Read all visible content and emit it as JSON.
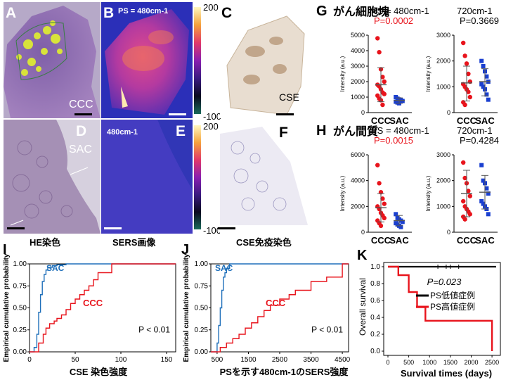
{
  "micrographs": {
    "letters": [
      "A",
      "B",
      "C",
      "D",
      "E",
      "F"
    ],
    "label_ccc": "CCC",
    "label_sac": "SAC",
    "label_cse": "CSE",
    "label_b": "PS = 480cm-1",
    "label_e": "480cm-1",
    "colorbar_max": "200",
    "colorbar_min": "-100",
    "caption_he": "HE染色",
    "caption_sers": "SERS画像",
    "caption_cse": "CSE免疫染色"
  },
  "scatter": {
    "G": {
      "letter": "G",
      "title": "がん細胞塊",
      "left": {
        "title": "PS = 480cm-1",
        "pvalue": "P=0.0002",
        "pvalue_color": "#e8141c"
      },
      "right": {
        "title": "720cm-1",
        "pvalue": "P=0.3669",
        "pvalue_color": "#000000"
      }
    },
    "H": {
      "letter": "H",
      "title": "がん間質",
      "left": {
        "title": "PS = 480cm-1",
        "pvalue": "P=0.0015",
        "pvalue_color": "#e8141c"
      },
      "right": {
        "title": "720cm-1",
        "pvalue": "P=0.4284",
        "pvalue_color": "#000000"
      }
    },
    "ylabel": "Intensity (a.u.)",
    "yticks": [
      "0",
      "1000",
      "2000",
      "3000",
      "4000",
      "5000"
    ],
    "yticks_h": [
      "0",
      "2000",
      "4000",
      "6000"
    ],
    "cat_labels": [
      "CCC",
      "SAC"
    ]
  },
  "ecdf": {
    "I": {
      "letter": "I",
      "ylabel": "Empirical cumulative probability",
      "xlabel": "CSE 染色強度",
      "xticks": [
        "0",
        "50",
        "100",
        "150"
      ],
      "yticks": [
        "0.00",
        "0.25",
        "0.50",
        "0.75",
        "1.00"
      ],
      "label_sac": "SAC",
      "label_ccc": "CCC",
      "pvalue": "P < 0.01"
    },
    "J": {
      "letter": "J",
      "ylabel": "Empirical cumulative probability",
      "xlabel": "PSを示す480cm-1のSERS強度",
      "xticks": [
        "500",
        "1500",
        "2500",
        "3500",
        "4500"
      ],
      "yticks": [
        "0.00",
        "0.25",
        "0.50",
        "0.75",
        "1.00"
      ],
      "label_sac": "SAC",
      "label_ccc": "CCC",
      "pvalue": "P < 0.01"
    }
  },
  "km": {
    "letter": "K",
    "ylabel": "Overall survival",
    "xlabel": "Survival times  (days)",
    "xticks": [
      "0",
      "500",
      "1000",
      "1500",
      "2000",
      "2500"
    ],
    "yticks": [
      "0.0",
      "0.2",
      "0.4",
      "0.6",
      "0.8",
      "1.0"
    ],
    "pvalue": "P=0.023",
    "legend_low": "PS低値症例",
    "legend_high": "PS高値症例"
  },
  "colors": {
    "ccc": "#e8141c",
    "sac": "#1e6fba",
    "sac_dot": "#1a3fd0",
    "black": "#000000"
  },
  "chart_data": [
    {
      "type": "scatter",
      "panel": "G-left",
      "title": "PS = 480cm-1",
      "ylabel": "Intensity (a.u.)",
      "ylim": [
        0,
        5000
      ],
      "categories": [
        "CCC",
        "SAC"
      ],
      "series": [
        {
          "name": "CCC",
          "values": [
            4800,
            3900,
            2800,
            2300,
            2000,
            1800,
            1700,
            1500,
            1300,
            1200,
            1100,
            900,
            800,
            500
          ],
          "mean": 1800,
          "sd_low": 700,
          "sd_high": 2900
        },
        {
          "name": "SAC",
          "values": [
            1000,
            900,
            850,
            800,
            750,
            700,
            650,
            600
          ],
          "mean": 780,
          "sd_low": 600,
          "sd_high": 950
        }
      ]
    },
    {
      "type": "scatter",
      "panel": "G-right",
      "title": "720cm-1",
      "ylim": [
        0,
        3000
      ],
      "categories": [
        "CCC",
        "SAC"
      ],
      "series": [
        {
          "name": "CCC",
          "values": [
            2700,
            2200,
            1900,
            1500,
            1200,
            1100,
            1000,
            900,
            800,
            600,
            400,
            300
          ],
          "mean": 1150,
          "sd_low": 450,
          "sd_high": 1800
        },
        {
          "name": "SAC",
          "values": [
            2000,
            1800,
            1600,
            1400,
            1200,
            1100,
            1000,
            900,
            700,
            500
          ],
          "mean": 1200,
          "sd_low": 650,
          "sd_high": 1700
        }
      ]
    },
    {
      "type": "scatter",
      "panel": "H-left",
      "title": "PS = 480cm-1",
      "ylabel": "Intensity (a.u.)",
      "ylim": [
        0,
        6000
      ],
      "categories": [
        "CCC",
        "SAC"
      ],
      "series": [
        {
          "name": "CCC",
          "values": [
            5200,
            3800,
            3100,
            2600,
            2200,
            2000,
            1800,
            1500,
            1300,
            1100,
            900,
            700,
            500
          ],
          "mean": 1900,
          "sd_low": 800,
          "sd_high": 3000
        },
        {
          "name": "SAC",
          "values": [
            1400,
            1100,
            1000,
            900,
            800,
            700,
            600,
            500,
            400
          ],
          "mean": 900,
          "sd_low": 500,
          "sd_high": 1300
        }
      ]
    },
    {
      "type": "scatter",
      "panel": "H-right",
      "title": "720cm-1",
      "ylim": [
        0,
        3000
      ],
      "categories": [
        "CCC",
        "SAC"
      ],
      "series": [
        {
          "name": "CCC",
          "values": [
            2700,
            2100,
            1900,
            1600,
            1400,
            1200,
            1000,
            900,
            800,
            700,
            600,
            500
          ],
          "mean": 1500,
          "sd_low": 600,
          "sd_high": 2400
        },
        {
          "name": "SAC",
          "values": [
            2600,
            2000,
            1900,
            1700,
            1500,
            1200,
            1100,
            1000,
            900,
            700
          ],
          "mean": 1550,
          "sd_low": 900,
          "sd_high": 2200
        }
      ]
    },
    {
      "type": "line",
      "panel": "I",
      "xlabel": "CSE 染色強度",
      "ylabel": "Empirical cumulative probability",
      "xlim": [
        0,
        160
      ],
      "ylim": [
        0,
        1
      ],
      "series": [
        {
          "name": "SAC",
          "x": [
            0,
            5,
            8,
            10,
            12,
            14,
            16,
            18,
            20,
            25,
            30,
            40,
            60,
            160
          ],
          "y": [
            0,
            0.05,
            0.2,
            0.45,
            0.65,
            0.8,
            0.88,
            0.93,
            0.96,
            0.98,
            0.99,
            1,
            1,
            1
          ]
        },
        {
          "name": "CCC",
          "x": [
            0,
            10,
            15,
            18,
            22,
            27,
            30,
            35,
            40,
            45,
            50,
            55,
            60,
            65,
            70,
            75,
            90,
            160
          ],
          "y": [
            0,
            0.1,
            0.2,
            0.27,
            0.32,
            0.35,
            0.38,
            0.42,
            0.48,
            0.55,
            0.6,
            0.65,
            0.7,
            0.75,
            0.82,
            0.9,
            1,
            1
          ]
        }
      ]
    },
    {
      "type": "line",
      "panel": "J",
      "xlabel": "PSを示す480cm-1のSERS強度",
      "ylabel": "Empirical cumulative probability",
      "xlim": [
        300,
        4700
      ],
      "ylim": [
        0,
        1
      ],
      "series": [
        {
          "name": "SAC",
          "x": [
            300,
            500,
            550,
            600,
            650,
            700,
            750,
            800,
            900,
            1000,
            4700
          ],
          "y": [
            0,
            0.1,
            0.3,
            0.5,
            0.7,
            0.85,
            0.9,
            0.95,
            1,
            1,
            1
          ]
        },
        {
          "name": "CCC",
          "x": [
            300,
            600,
            800,
            1000,
            1200,
            1400,
            1600,
            1800,
            2000,
            2200,
            2500,
            2800,
            3000,
            3500,
            4000,
            4500,
            4700
          ],
          "y": [
            0,
            0.05,
            0.1,
            0.15,
            0.2,
            0.27,
            0.33,
            0.4,
            0.47,
            0.53,
            0.6,
            0.65,
            0.7,
            0.8,
            0.85,
            1,
            1
          ]
        }
      ]
    },
    {
      "type": "line",
      "panel": "K",
      "xlabel": "Survival times  (days)",
      "ylabel": "Overall survival",
      "xlim": [
        0,
        2600
      ],
      "ylim": [
        0,
        1.05
      ],
      "series": [
        {
          "name": "PS低値症例",
          "x": [
            0,
            2600
          ],
          "y": [
            1,
            1
          ]
        },
        {
          "name": "PS高値症例",
          "x": [
            0,
            250,
            250,
            500,
            500,
            700,
            700,
            900,
            900,
            2500,
            2500
          ],
          "y": [
            1,
            1,
            0.9,
            0.9,
            0.7,
            0.7,
            0.52,
            0.52,
            0.36,
            0.36,
            0
          ]
        }
      ]
    }
  ]
}
